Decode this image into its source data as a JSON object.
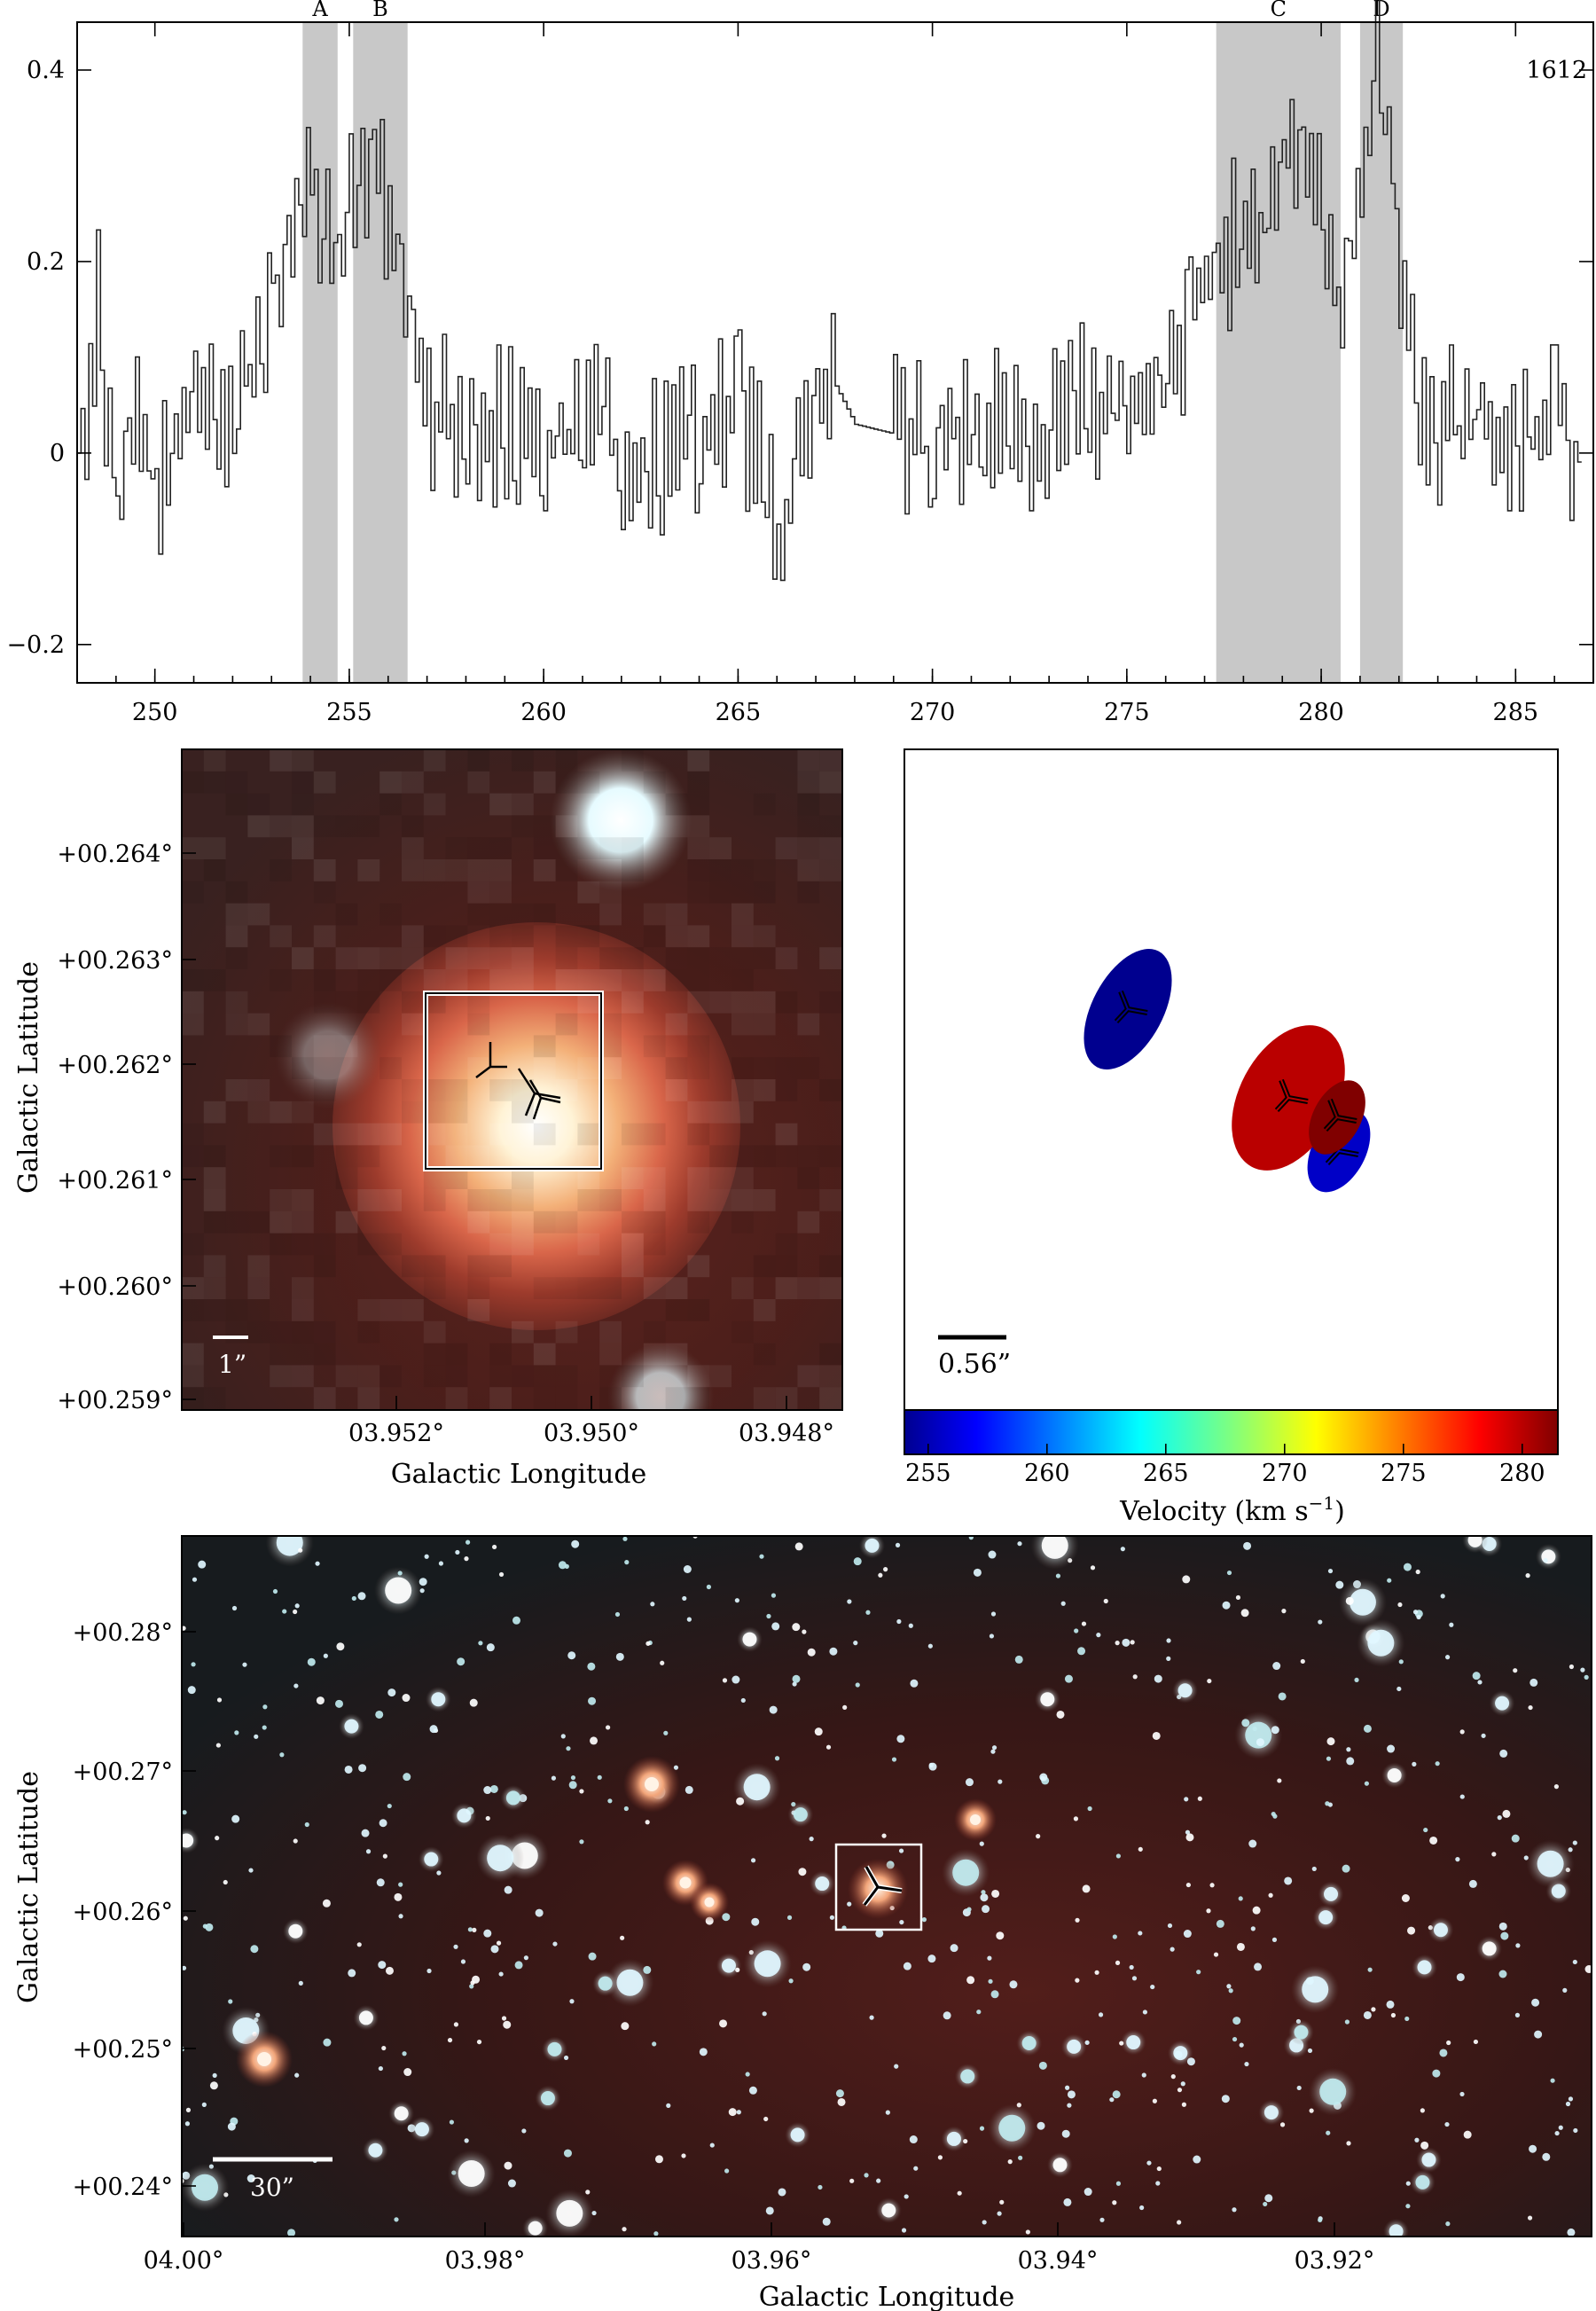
{
  "chart_data": [
    {
      "type": "line",
      "label": "1612",
      "x_ticks": [
        "250",
        "255",
        "260",
        "265",
        "270",
        "275",
        "280",
        "285"
      ],
      "y_ticks": [
        "0.4",
        "0.2",
        "0",
        "−0.2"
      ],
      "xlim": [
        248,
        287
      ],
      "ylim": [
        -0.24,
        0.45
      ],
      "shaded_regions": [
        {
          "name": "A",
          "range": [
            253.8,
            254.7
          ]
        },
        {
          "name": "B",
          "range": [
            255.1,
            256.5
          ]
        },
        {
          "name": "C",
          "range": [
            277.3,
            280.5
          ]
        },
        {
          "name": "D",
          "range": [
            281.0,
            282.1
          ]
        }
      ],
      "series": [
        {
          "x": [
            248.0,
            248.5,
            249.0,
            249.5,
            250.0,
            250.5,
            251.0,
            251.5,
            252.0,
            252.5,
            253.0,
            253.5,
            253.8,
            254.0,
            254.3,
            254.6,
            255.0,
            255.3,
            255.6,
            256.0,
            256.3,
            256.6,
            257.0,
            258.0,
            259.0,
            260.0,
            261.0,
            262.0,
            263.0,
            264.0,
            265.0,
            265.5,
            266.0,
            266.5,
            267.0,
            267.5,
            268.0,
            269.0,
            270.0,
            271.0,
            272.0,
            273.0,
            274.0,
            275.0,
            276.0,
            276.5,
            277.0,
            277.5,
            278.0,
            278.5,
            279.0,
            279.5,
            280.0,
            280.5,
            281.0,
            281.3,
            281.6,
            282.0,
            282.5,
            283.0,
            284.0,
            285.0,
            286.0,
            286.7
          ],
          "y": [
            0.0,
            0.15,
            -0.05,
            0.05,
            -0.05,
            0.0,
            0.05,
            0.02,
            0.06,
            0.1,
            0.18,
            0.2,
            0.3,
            0.27,
            0.24,
            0.18,
            0.25,
            0.3,
            0.28,
            0.25,
            0.15,
            0.1,
            0.05,
            0.02,
            0.03,
            0.0,
            0.03,
            0.01,
            -0.01,
            0.02,
            0.04,
            0.01,
            -0.1,
            0.02,
            0.07,
            0.07,
            0.03,
            0.02,
            0.0,
            0.04,
            0.02,
            0.03,
            0.05,
            0.07,
            0.1,
            0.12,
            0.18,
            0.2,
            0.25,
            0.22,
            0.3,
            0.33,
            0.25,
            0.15,
            0.3,
            0.4,
            0.38,
            0.2,
            0.05,
            0.02,
            0.03,
            0.0,
            0.04,
            0.0
          ]
        }
      ]
    },
    {
      "type": "heatmap",
      "x_ticks": [
        "03.952°",
        "03.950°",
        "03.948°"
      ],
      "y_ticks": [
        "+00.264°",
        "+00.263°",
        "+00.262°",
        "+00.261°",
        "+00.260°",
        "+00.259°"
      ],
      "xlabel": "Galactic Longitude",
      "ylabel": "Galactic Latitude",
      "scale_bar": "1”"
    },
    {
      "type": "scatter",
      "scale_bar": "0.56”",
      "colorbar_ticks": [
        "255",
        "260",
        "265",
        "270",
        "275",
        "280"
      ],
      "colorbar_label": "Velocity (km s",
      "colorbar_label_sup": "−1",
      "colorbar_label_end": ")",
      "points": [
        {
          "velocity": 254.0
        },
        {
          "velocity": 280.0
        },
        {
          "velocity": 281.5
        },
        {
          "velocity": 255.5
        }
      ]
    },
    {
      "type": "heatmap",
      "x_ticks": [
        "04.00°",
        "03.98°",
        "03.96°",
        "03.94°",
        "03.92°"
      ],
      "y_ticks": [
        "+00.28°",
        "+00.27°",
        "+00.26°",
        "+00.25°",
        "+00.24°"
      ],
      "xlabel": "Galactic Longitude",
      "ylabel": "Galactic Latitude",
      "scale_bar": "30”"
    }
  ]
}
